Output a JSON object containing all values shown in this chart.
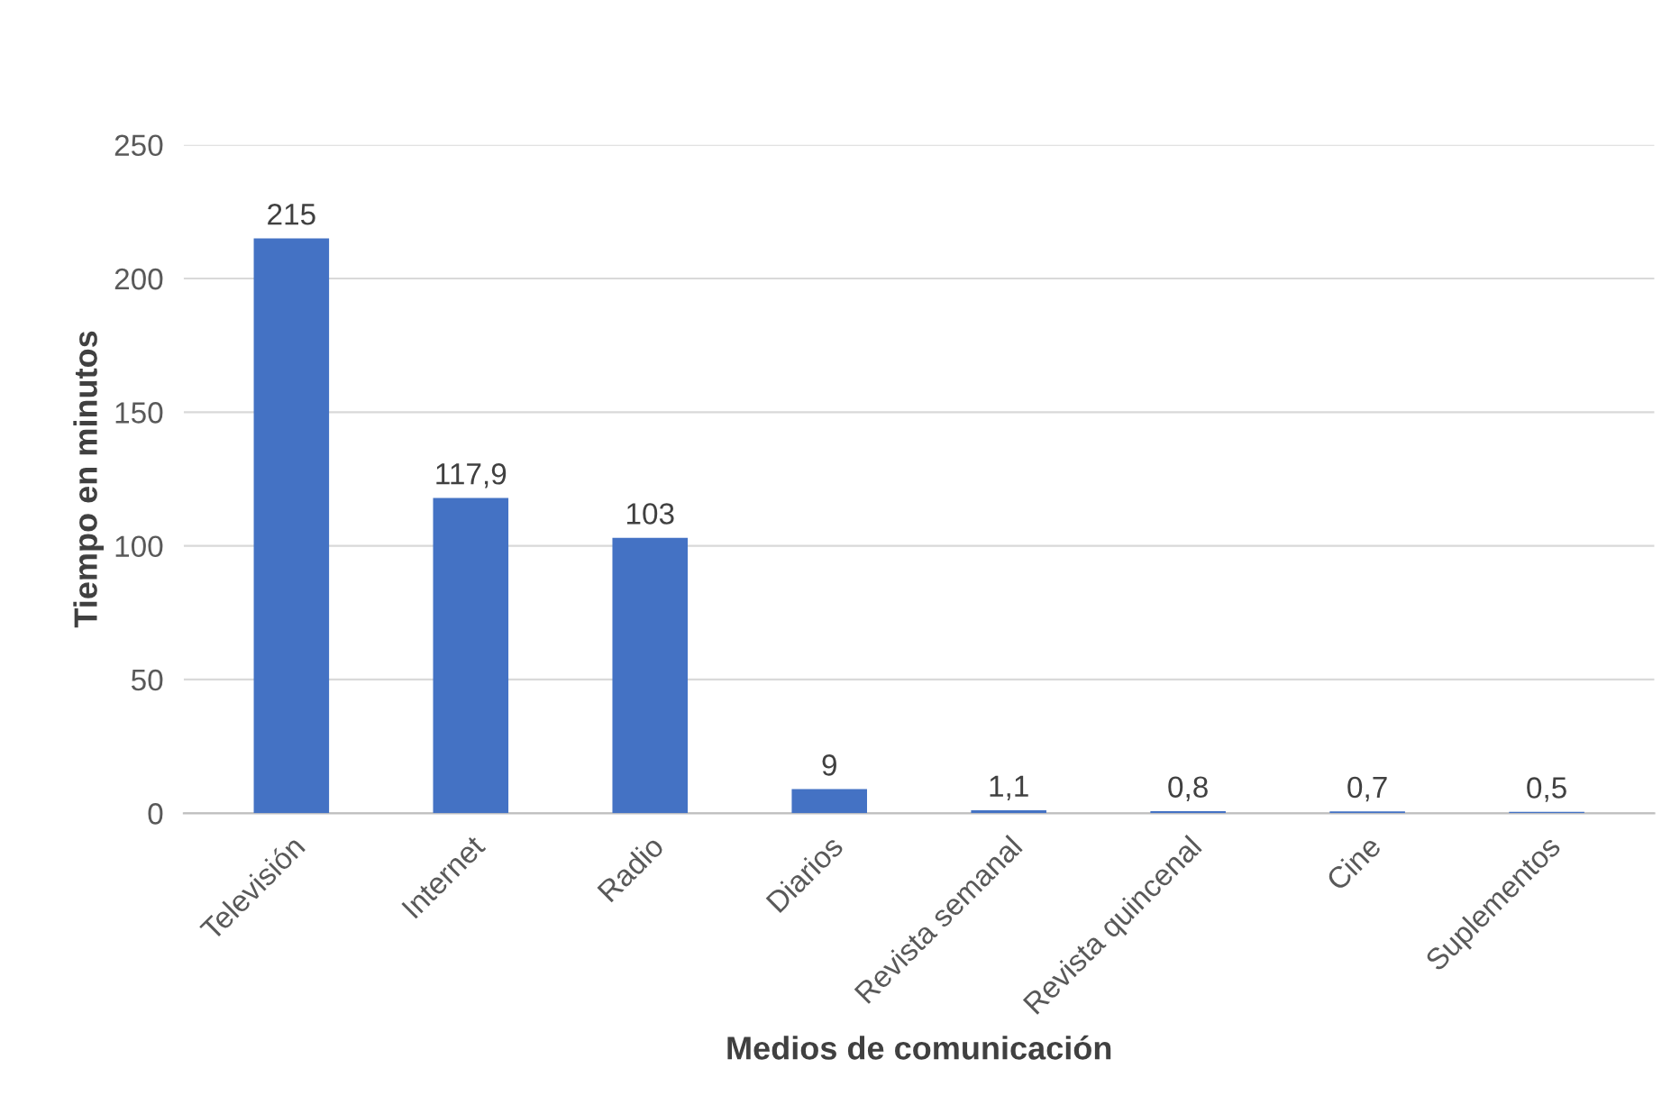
{
  "chart_data": {
    "type": "bar",
    "xlabel": "Medios de comunicación",
    "ylabel": "Tiempo en minutos",
    "categories": [
      "Televisión",
      "Internet",
      "Radio",
      "Diarios",
      "Revista semanal",
      "Revista quincenal",
      "Cine",
      "Suplementos"
    ],
    "values": [
      215,
      117.9,
      103,
      9,
      1.1,
      0.8,
      0.7,
      0.5
    ],
    "value_labels": [
      "215",
      "117,9",
      "103",
      "9",
      "1,1",
      "0,8",
      "0,7",
      "0,5"
    ],
    "color": "#4472c4",
    "ylim": [
      0,
      250
    ],
    "yticks": [
      0,
      50,
      100,
      150,
      200,
      250
    ],
    "grid": "y"
  }
}
